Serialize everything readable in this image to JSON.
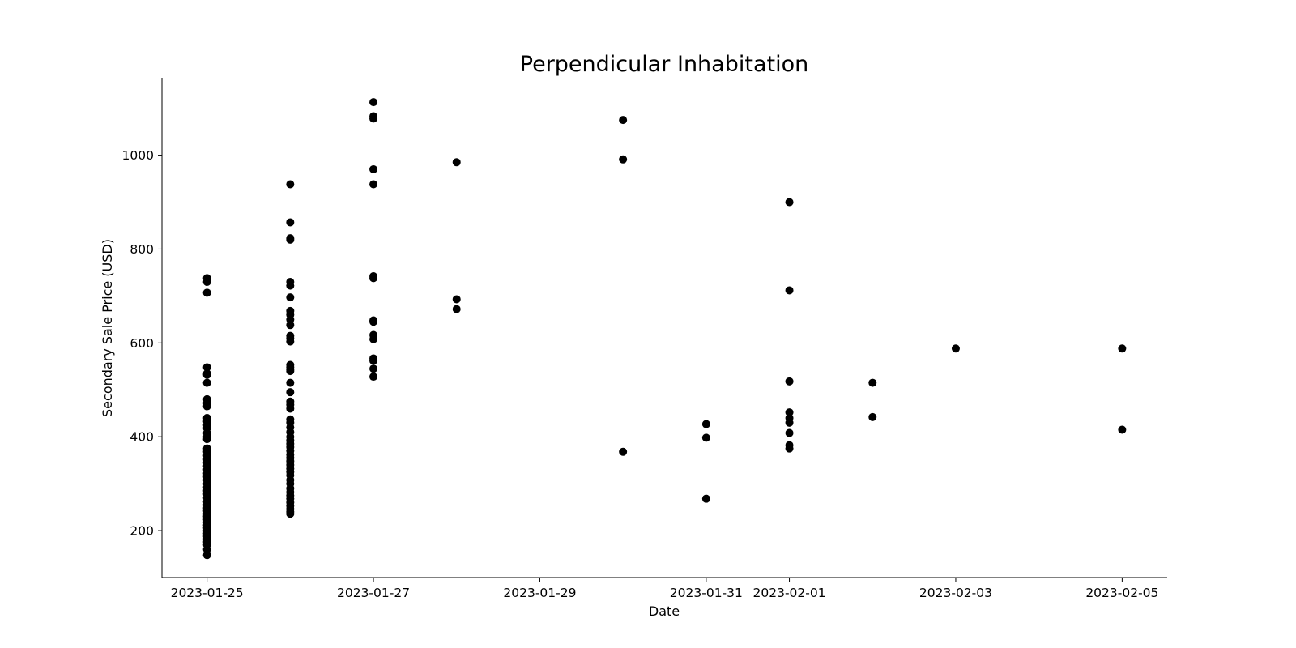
{
  "chart_data": {
    "type": "scatter",
    "title": "Perpendicular Inhabitation",
    "xlabel": "Date",
    "ylabel": "Secondary Sale Price (USD)",
    "x_ticks": [
      "2023-01-25",
      "2023-01-27",
      "2023-01-29",
      "2023-01-31",
      "2023-02-01",
      "2023-02-03",
      "2023-02-05"
    ],
    "y_ticks": [
      200,
      400,
      600,
      800,
      1000
    ],
    "xlim": [
      "2023-01-24 11:00",
      "2023-02-05 13:00"
    ],
    "ylim": [
      100,
      1165
    ],
    "grid": false,
    "marker_color": "#000000",
    "points": [
      {
        "x": "2023-01-25",
        "y": [
          738,
          730,
          707,
          548,
          535,
          532,
          515,
          480,
          472,
          465,
          440,
          433,
          425,
          418,
          408,
          400,
          395,
          375,
          368,
          360,
          352,
          345,
          338,
          330,
          322,
          315,
          308,
          300,
          292,
          285,
          278,
          270,
          262,
          255,
          248,
          242,
          236,
          230,
          224,
          218,
          212,
          206,
          200,
          194,
          188,
          182,
          176,
          170,
          160,
          148
        ]
      },
      {
        "x": "2023-01-26",
        "y": [
          938,
          857,
          823,
          820,
          730,
          722,
          697,
          668,
          660,
          650,
          638,
          615,
          610,
          603,
          553,
          548,
          543,
          540,
          515,
          495,
          475,
          468,
          460,
          437,
          430,
          420,
          410,
          400,
          392,
          385,
          378,
          370,
          362,
          355,
          348,
          340,
          332,
          325,
          318,
          308,
          300,
          290,
          282,
          275,
          268,
          260,
          253,
          246,
          240,
          236
        ]
      },
      {
        "x": "2023-01-27",
        "y": [
          1113,
          1083,
          1078,
          970,
          938,
          742,
          738,
          648,
          645,
          617,
          608,
          567,
          562,
          545,
          528
        ]
      },
      {
        "x": "2023-01-28",
        "y": [
          985,
          693,
          672
        ]
      },
      {
        "x": "2023-01-30",
        "y": [
          1075,
          991,
          368
        ]
      },
      {
        "x": "2023-01-31",
        "y": [
          427,
          398,
          268
        ]
      },
      {
        "x": "2023-02-01",
        "y": [
          900,
          712,
          518,
          452,
          440,
          430,
          408,
          382,
          375
        ]
      },
      {
        "x": "2023-02-02",
        "y": [
          515,
          442
        ]
      },
      {
        "x": "2023-02-03",
        "y": [
          588
        ]
      },
      {
        "x": "2023-02-05",
        "y": [
          588,
          415
        ]
      }
    ]
  }
}
